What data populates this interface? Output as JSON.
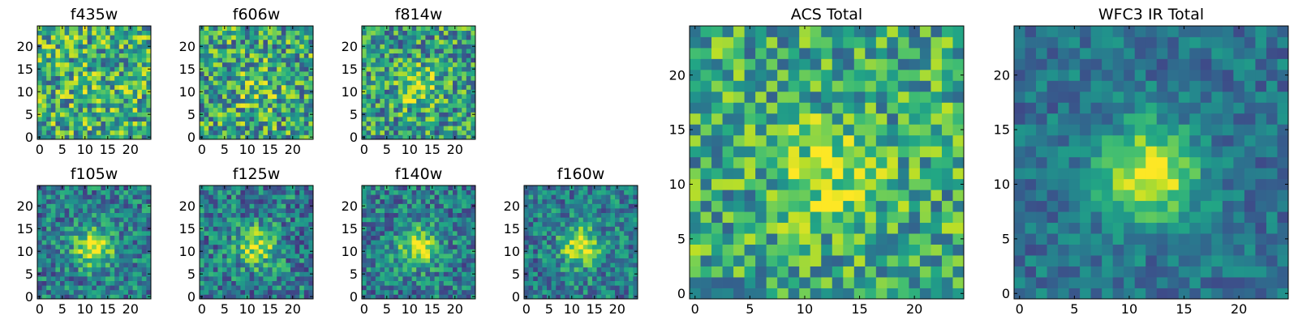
{
  "colormap": [
    "#440154",
    "#482475",
    "#414487",
    "#355f8d",
    "#2a788e",
    "#21918c",
    "#22a884",
    "#44bf70",
    "#7ad151",
    "#bddf26",
    "#fde725"
  ],
  "chart_data": [
    {
      "type": "heatmap",
      "id": "f435w",
      "title": "f435w",
      "grid_size": 25,
      "xlim": [
        -0.5,
        24.5
      ],
      "ylim": [
        -0.5,
        24.5
      ],
      "xticks": [
        0,
        5,
        10,
        15,
        20
      ],
      "yticks": [
        0,
        5,
        10,
        15,
        20
      ],
      "source_peak": 0.05,
      "noise": 0.36,
      "baseline": 0.62,
      "seed": 11
    },
    {
      "type": "heatmap",
      "id": "f606w",
      "title": "f606w",
      "grid_size": 25,
      "xlim": [
        -0.5,
        24.5
      ],
      "ylim": [
        -0.5,
        24.5
      ],
      "xticks": [
        0,
        5,
        10,
        15,
        20
      ],
      "yticks": [
        0,
        5,
        10,
        15,
        20
      ],
      "source_peak": 0.18,
      "noise": 0.36,
      "baseline": 0.58,
      "seed": 23
    },
    {
      "type": "heatmap",
      "id": "f814w",
      "title": "f814w",
      "grid_size": 25,
      "xlim": [
        -0.5,
        24.5
      ],
      "ylim": [
        -0.5,
        24.5
      ],
      "xticks": [
        0,
        5,
        10,
        15,
        20
      ],
      "yticks": [
        0,
        5,
        10,
        15,
        20
      ],
      "source_peak": 0.32,
      "noise": 0.34,
      "baseline": 0.55,
      "seed": 37
    },
    {
      "type": "heatmap",
      "id": "f105w",
      "title": "f105w",
      "grid_size": 25,
      "xlim": [
        -0.5,
        24.5
      ],
      "ylim": [
        -0.5,
        24.5
      ],
      "xticks": [
        0,
        5,
        10,
        15,
        20
      ],
      "yticks": [
        0,
        5,
        10,
        15,
        20
      ],
      "source_peak": 0.55,
      "noise": 0.26,
      "baseline": 0.42,
      "seed": 41
    },
    {
      "type": "heatmap",
      "id": "f125w",
      "title": "f125w",
      "grid_size": 25,
      "xlim": [
        -0.5,
        24.5
      ],
      "ylim": [
        -0.5,
        24.5
      ],
      "xticks": [
        0,
        5,
        10,
        15,
        20
      ],
      "yticks": [
        0,
        5,
        10,
        15,
        20
      ],
      "source_peak": 0.5,
      "noise": 0.28,
      "baseline": 0.42,
      "seed": 53
    },
    {
      "type": "heatmap",
      "id": "f140w",
      "title": "f140w",
      "grid_size": 25,
      "xlim": [
        -0.5,
        24.5
      ],
      "ylim": [
        -0.5,
        24.5
      ],
      "xticks": [
        0,
        5,
        10,
        15,
        20
      ],
      "yticks": [
        0,
        5,
        10,
        15,
        20
      ],
      "source_peak": 0.52,
      "noise": 0.26,
      "baseline": 0.42,
      "seed": 67
    },
    {
      "type": "heatmap",
      "id": "f160w",
      "title": "f160w",
      "grid_size": 25,
      "xlim": [
        -0.5,
        24.5
      ],
      "ylim": [
        -0.5,
        24.5
      ],
      "xticks": [
        0,
        5,
        10,
        15,
        20
      ],
      "yticks": [
        0,
        5,
        10,
        15,
        20
      ],
      "source_peak": 0.55,
      "noise": 0.25,
      "baseline": 0.42,
      "seed": 79
    },
    {
      "type": "heatmap",
      "id": "acs_total",
      "title": "ACS Total",
      "grid_size": 25,
      "xlim": [
        -0.5,
        24.5
      ],
      "ylim": [
        -0.5,
        24.5
      ],
      "xticks": [
        0,
        5,
        10,
        15,
        20
      ],
      "yticks": [
        0,
        5,
        10,
        15,
        20
      ],
      "source_peak": 0.3,
      "noise": 0.3,
      "baseline": 0.6,
      "seed": 97
    },
    {
      "type": "heatmap",
      "id": "wfc3_ir_total",
      "title": "WFC3 IR Total",
      "grid_size": 25,
      "xlim": [
        -0.5,
        24.5
      ],
      "ylim": [
        -0.5,
        24.5
      ],
      "xticks": [
        0,
        5,
        10,
        15,
        20
      ],
      "yticks": [
        0,
        5,
        10,
        15,
        20
      ],
      "source_peak": 0.62,
      "noise": 0.16,
      "baseline": 0.38,
      "seed": 101
    }
  ]
}
